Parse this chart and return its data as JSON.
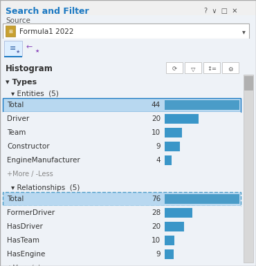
{
  "title": "Search and Filter",
  "source_label": "Source",
  "source_value": "Formula1 2022",
  "histogram_label": "Histogram",
  "types_label": "Types",
  "entities_label": "Entities  (5)",
  "entities": [
    {
      "name": "Total",
      "value": 44,
      "selected": true
    },
    {
      "name": "Driver",
      "value": 20,
      "selected": false
    },
    {
      "name": "Team",
      "value": 10,
      "selected": false
    },
    {
      "name": "Constructor",
      "value": 9,
      "selected": false
    },
    {
      "name": "EngineManufacturer",
      "value": 4,
      "selected": false
    }
  ],
  "entities_max": 44,
  "relationships_label": "Relationships  (5)",
  "relationships": [
    {
      "name": "Total",
      "value": 76,
      "selected": true
    },
    {
      "name": "FormerDriver",
      "value": 28,
      "selected": false
    },
    {
      "name": "HasDriver",
      "value": 20,
      "selected": false
    },
    {
      "name": "HasTeam",
      "value": 10,
      "selected": false
    },
    {
      "name": "HasEngine",
      "value": 9,
      "selected": false
    }
  ],
  "relationships_max": 76,
  "more_less_text": "+More / -Less",
  "bg_color": "#eef2f7",
  "panel_bg": "#ffffff",
  "title_color": "#1a78c2",
  "bar_selected_light": "#b8d8f0",
  "bar_selected_dark": "#4a9cc8",
  "bar_normal": "#3a96c8",
  "border_color": "#1a78c2",
  "rel_border_color": "#4a9cc8",
  "text_color": "#333333",
  "gray_text": "#888888",
  "scrollbar_bg": "#d8d8d8",
  "scrollbar_thumb": "#b0b0b0",
  "icon_border": "#c8c8c8",
  "dropdown_bg": "#ffffff",
  "tab_underline": "#1a78c2"
}
